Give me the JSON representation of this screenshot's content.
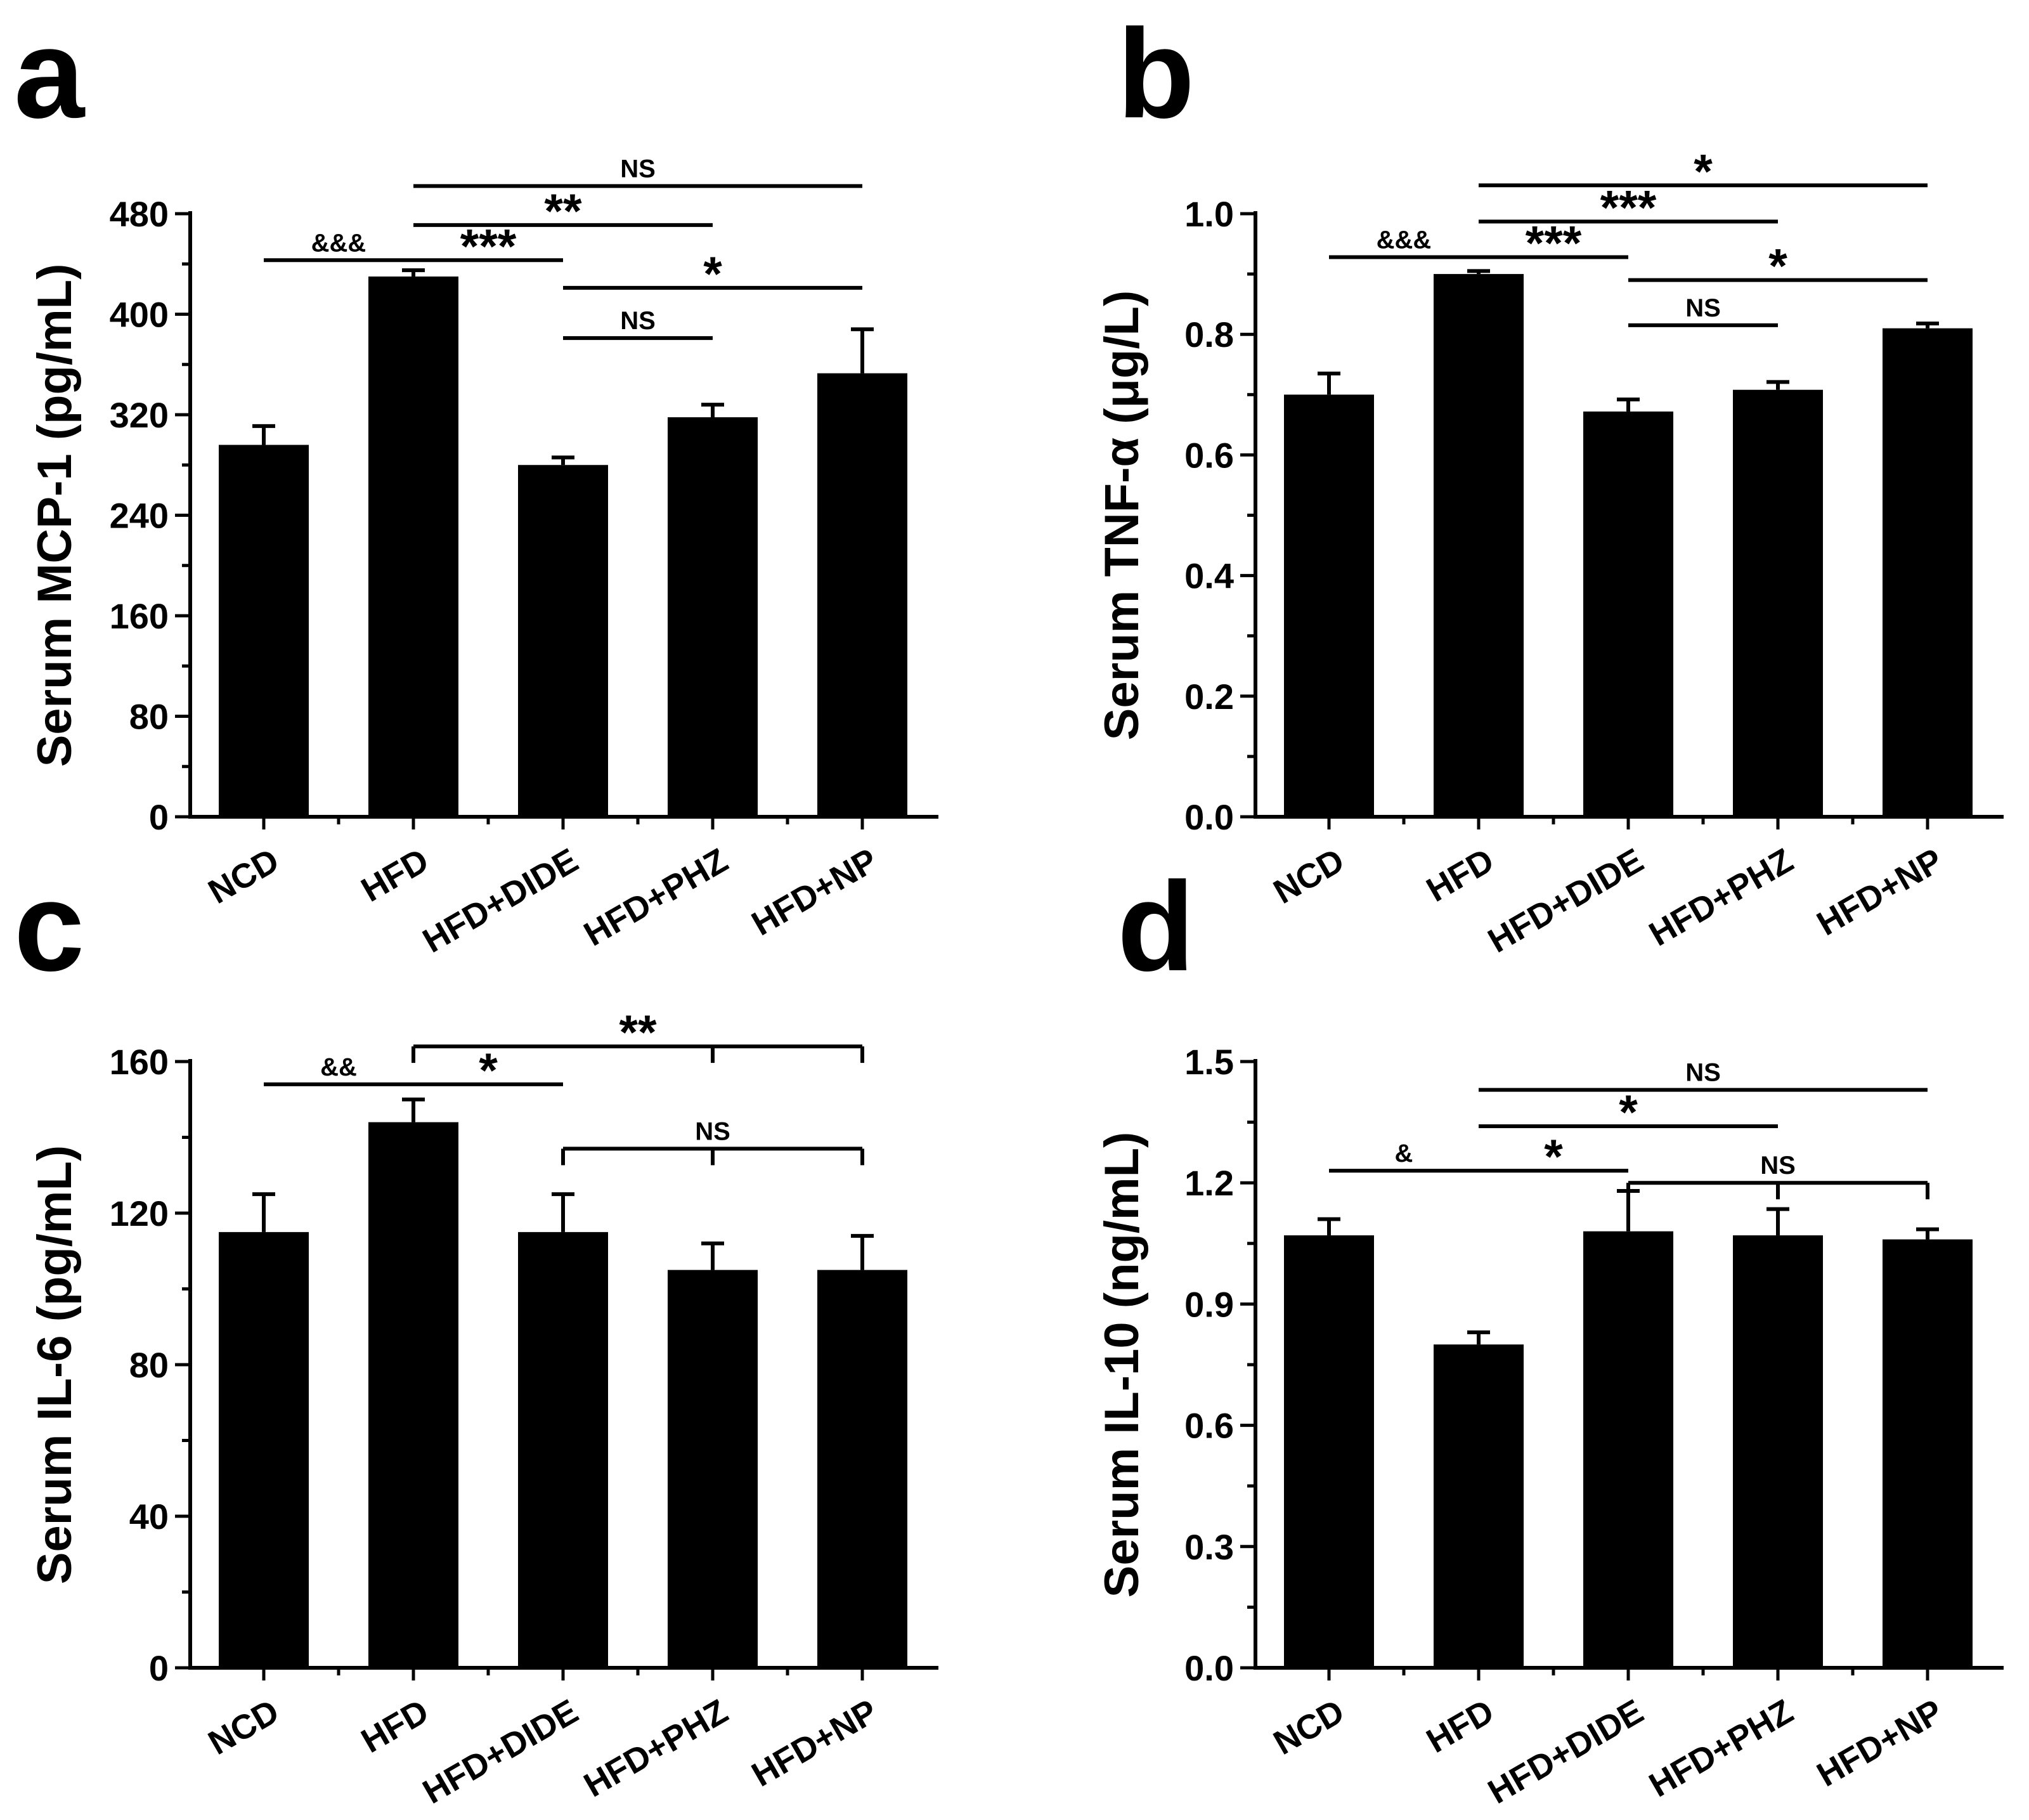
{
  "chart_data": [
    {
      "panel": "a",
      "type": "bar",
      "ylabel": "Serum MCP-1 (pg/mL)",
      "categories": [
        "NCD",
        "HFD",
        "HFD+DIDE",
        "HFD+PHZ",
        "HFD+NP"
      ],
      "values": [
        296,
        430,
        280,
        318,
        353
      ],
      "errors": [
        15,
        5,
        6,
        10,
        35
      ],
      "ylim": [
        0,
        480
      ],
      "yticks": [
        "0",
        "80",
        "160",
        "240",
        "320",
        "400",
        "480"
      ],
      "significance": [
        {
          "from": 0,
          "to": 1,
          "label": "&&&",
          "y": 443
        },
        {
          "from": 1,
          "to": 2,
          "label": "***",
          "y": 443
        },
        {
          "from": 1,
          "to": 3,
          "label": "**",
          "y": 471
        },
        {
          "from": 1,
          "to": 4,
          "label": "NS",
          "y": 502
        },
        {
          "from": 2,
          "to": 4,
          "label": "*",
          "y": 421
        },
        {
          "from": 2,
          "to": 3,
          "label": "NS",
          "y": 381
        }
      ]
    },
    {
      "panel": "b",
      "type": "bar",
      "ylabel": "Serum TNF-α (μg/L)",
      "categories": [
        "NCD",
        "HFD",
        "HFD+DIDE",
        "HFD+PHZ",
        "HFD+NP"
      ],
      "values": [
        0.7,
        0.9,
        0.672,
        0.708,
        0.81
      ],
      "errors": [
        0.035,
        0.005,
        0.02,
        0.013,
        0.008
      ],
      "ylim": [
        0,
        1.0
      ],
      "yticks": [
        "0.0",
        "0.2",
        "0.4",
        "0.6",
        "0.8",
        "1.0"
      ],
      "significance": [
        {
          "from": 0,
          "to": 1,
          "label": "&&&",
          "y": 0.928
        },
        {
          "from": 1,
          "to": 2,
          "label": "***",
          "y": 0.928
        },
        {
          "from": 1,
          "to": 3,
          "label": "***",
          "y": 0.987
        },
        {
          "from": 1,
          "to": 4,
          "label": "*",
          "y": 1.047
        },
        {
          "from": 2,
          "to": 4,
          "label": "*",
          "y": 0.89
        },
        {
          "from": 2,
          "to": 3,
          "label": "NS",
          "y": 0.815
        }
      ]
    },
    {
      "panel": "c",
      "type": "bar",
      "ylabel": "Serum IL-6 (pg/mL)",
      "categories": [
        "NCD",
        "HFD",
        "HFD+DIDE",
        "HFD+PHZ",
        "HFD+NP"
      ],
      "values": [
        115,
        144,
        115,
        105,
        105
      ],
      "errors": [
        10,
        6,
        10,
        7,
        9
      ],
      "ylim": [
        0,
        160
      ],
      "yticks": [
        "0",
        "40",
        "80",
        "120",
        "160"
      ],
      "significance": [
        {
          "from": 0,
          "to": 1,
          "label": "&&",
          "y": 154
        },
        {
          "from": 1,
          "to": 2,
          "label": "*",
          "y": 154
        },
        {
          "from": 1,
          "to": 4,
          "label": "**",
          "y": 164,
          "bracket": true,
          "mid": 3
        },
        {
          "from": 2,
          "to": 4,
          "label": "NS",
          "y": 137,
          "bracket": true,
          "mid": 3
        }
      ]
    },
    {
      "panel": "d",
      "type": "bar",
      "ylabel": "Serum IL-10 (ng/mL)",
      "categories": [
        "NCD",
        "HFD",
        "HFD+DIDE",
        "HFD+PHZ",
        "HFD+NP"
      ],
      "values": [
        1.07,
        0.8,
        1.08,
        1.07,
        1.06
      ],
      "errors": [
        0.04,
        0.03,
        0.1,
        0.065,
        0.025
      ],
      "ylim": [
        0,
        1.5
      ],
      "yticks": [
        "0.0",
        "0.3",
        "0.6",
        "0.9",
        "1.2",
        "1.5"
      ],
      "significance": [
        {
          "from": 0,
          "to": 1,
          "label": "&",
          "y": 1.23
        },
        {
          "from": 1,
          "to": 2,
          "label": "*",
          "y": 1.23
        },
        {
          "from": 1,
          "to": 3,
          "label": "*",
          "y": 1.34
        },
        {
          "from": 1,
          "to": 4,
          "label": "NS",
          "y": 1.43
        },
        {
          "from": 2,
          "to": 4,
          "label": "NS",
          "y": 1.2,
          "bracket": true,
          "mid": 3
        }
      ]
    }
  ]
}
